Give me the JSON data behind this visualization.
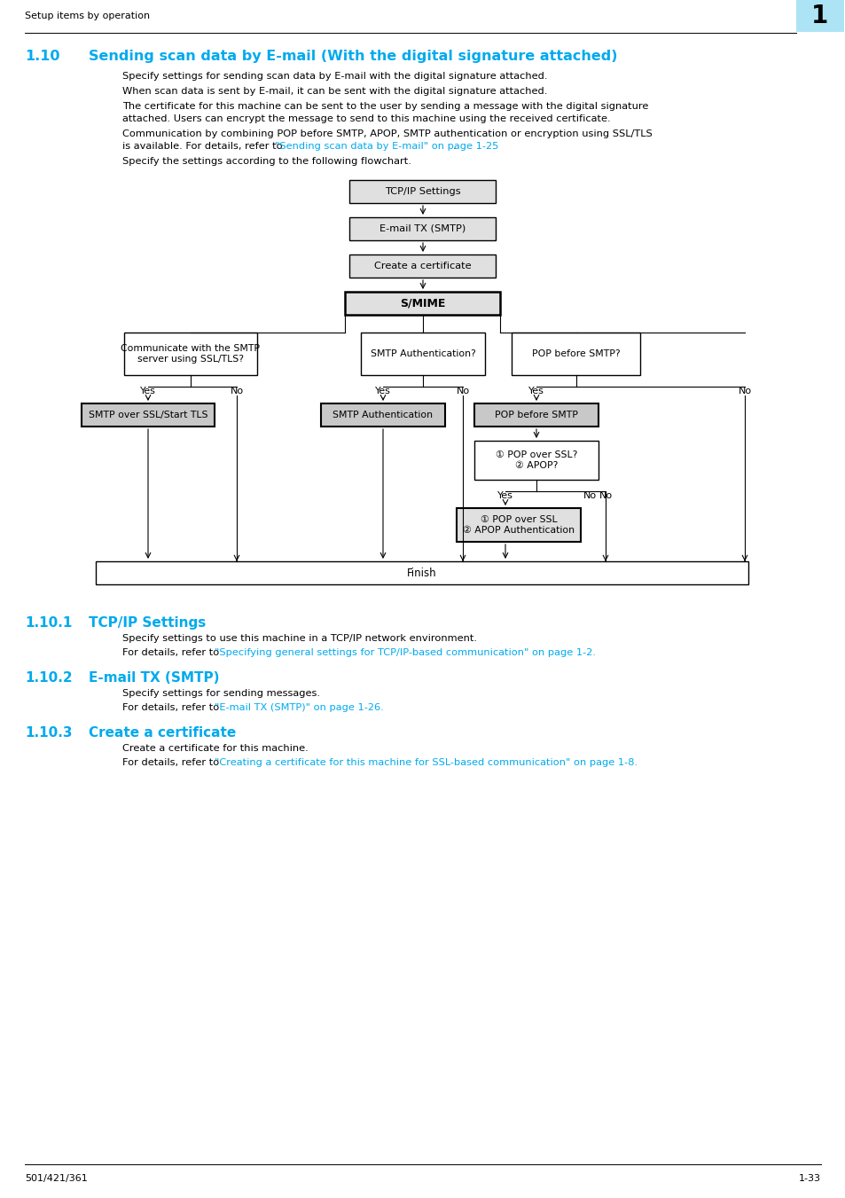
{
  "page_title": "Setup items by operation",
  "chapter_number": "1",
  "section_number": "1.10",
  "section_title": "Sending scan data by E-mail (With the digital signature attached)",
  "section_color": "#00AAEE",
  "para1": "Specify settings for sending scan data by E-mail with the digital signature attached.",
  "para2": "When scan data is sent by E-mail, it can be sent with the digital signature attached.",
  "para3a": "The certificate for this machine can be sent to the user by sending a message with the digital signature",
  "para3b": "attached. Users can encrypt the message to send to this machine using the received certificate.",
  "para4a": "Communication by combining POP before SMTP, APOP, SMTP authentication or encryption using SSL/TLS",
  "para4b_pre": "is available. For details, refer to ",
  "para4b_link": "\"Sending scan data by E-mail\" on page 1-25",
  "para4b_post": ".",
  "para5": "Specify the settings according to the following flowchart.",
  "nodes": {
    "tcp_ip": "TCP/IP Settings",
    "email_tx": "E-mail TX (SMTP)",
    "create_cert": "Create a certificate",
    "smime": "S/MIME",
    "q_ssl": "Communicate with the SMTP\nserver using SSL/TLS?",
    "q_smtp_auth": "SMTP Authentication?",
    "q_pop_smtp": "POP before SMTP?",
    "smtp_ssl": "SMTP over SSL/Start TLS",
    "smtp_auth": "SMTP Authentication",
    "pop_before_smtp": "POP before SMTP",
    "q_pop_ssl": "① POP over SSL?\n② APOP?",
    "pop_ssl_apop": "① POP over SSL\n② APOP Authentication",
    "finish": "Finish"
  },
  "sub101_num": "1.10.1",
  "sub101_title": "TCP/IP Settings",
  "sub101_body": "Specify settings to use this machine in a TCP/IP network environment.",
  "sub101_pre": "For details, refer to ",
  "sub101_link": "\"Specifying general settings for TCP/IP-based communication\" on page 1-2.",
  "sub102_num": "1.10.2",
  "sub102_title": "E-mail TX (SMTP)",
  "sub102_body": "Specify settings for sending messages.",
  "sub102_pre": "For details, refer to ",
  "sub102_link": "\"E-mail TX (SMTP)\" on page 1-26.",
  "sub103_num": "1.10.3",
  "sub103_title": "Create a certificate",
  "sub103_body": "Create a certificate for this machine.",
  "sub103_pre": "For details, refer to ",
  "sub103_link": "\"Creating a certificate for this machine for SSL-based communication\" on page 1-8.",
  "footer_left": "501/421/361",
  "footer_right": "1-33",
  "bg": "#FFFFFF",
  "link_color": "#00AAEE",
  "black": "#000000",
  "box_gray1": "#E0E0E0",
  "box_gray2": "#C8C8C8"
}
